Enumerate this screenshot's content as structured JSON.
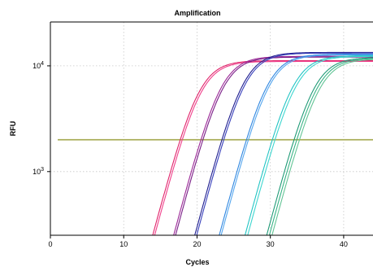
{
  "chart_data": {
    "type": "line",
    "title": "Amplification",
    "xlabel": "Cycles",
    "ylabel": "RFU",
    "xlim": [
      0,
      44
    ],
    "xticks": [
      0,
      10,
      20,
      30,
      40
    ],
    "yscale": "log",
    "ylim": [
      250,
      26000
    ],
    "yticks": [
      {
        "value": 1000,
        "base": "10",
        "exp": "3"
      },
      {
        "value": 10000,
        "base": "10",
        "exp": "4"
      }
    ],
    "grid": true,
    "threshold": {
      "y": 2000,
      "color": "#a3a84e"
    },
    "series": [
      {
        "color": "#e0246a",
        "ct": 22.8,
        "plateau": 11200
      },
      {
        "color": "#f0408c",
        "ct": 23.0,
        "plateau": 11000
      },
      {
        "color": "#9b2796",
        "ct": 26.0,
        "plateau": 12300
      },
      {
        "color": "#7a1f88",
        "ct": 26.2,
        "plateau": 12100
      },
      {
        "color": "#1e1c8e",
        "ct": 29.2,
        "plateau": 13400
      },
      {
        "color": "#3840bb",
        "ct": 29.4,
        "plateau": 13200
      },
      {
        "color": "#2f86e0",
        "ct": 32.4,
        "plateau": 12900
      },
      {
        "color": "#56a7ee",
        "ct": 32.6,
        "plateau": 12700
      },
      {
        "color": "#21c4c4",
        "ct": 35.8,
        "plateau": 12500
      },
      {
        "color": "#3ed6cf",
        "ct": 36.1,
        "plateau": 12300
      },
      {
        "color": "#1f9a76",
        "ct": 38.6,
        "plateau": 12000
      },
      {
        "color": "#38b486",
        "ct": 38.9,
        "plateau": 11800
      },
      {
        "color": "#63c495",
        "ct": 39.2,
        "plateau": 11600
      }
    ]
  }
}
